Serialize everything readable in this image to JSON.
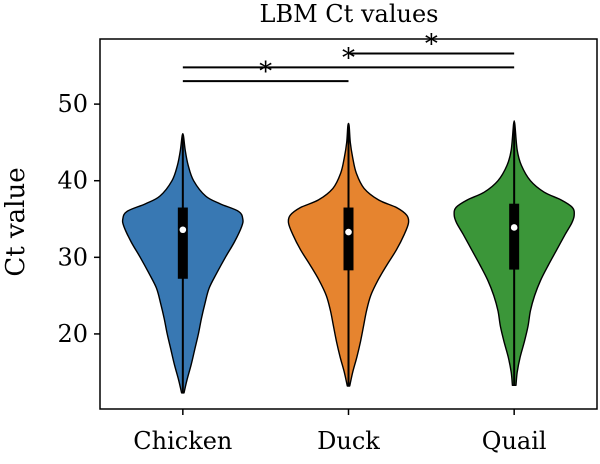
{
  "chart_data": {
    "type": "violin",
    "title": "LBM Ct values",
    "xlabel": "",
    "ylabel": "Ct value",
    "ylim": [
      10.2,
      58.5
    ],
    "yticks": [
      20,
      30,
      40,
      50
    ],
    "categories": [
      "Chicken",
      "Duck",
      "Quail"
    ],
    "series": [
      {
        "name": "Chicken",
        "color": "#3878b3",
        "min": 12.3,
        "q1": 27.2,
        "median": 33.6,
        "q3": 36.5,
        "max": 45.9,
        "density": [
          [
            12.3,
            0.02
          ],
          [
            14,
            0.07
          ],
          [
            16,
            0.14
          ],
          [
            18,
            0.2
          ],
          [
            20,
            0.26
          ],
          [
            22,
            0.31
          ],
          [
            24,
            0.37
          ],
          [
            26,
            0.44
          ],
          [
            28,
            0.57
          ],
          [
            30,
            0.71
          ],
          [
            32,
            0.86
          ],
          [
            34,
            0.98
          ],
          [
            35,
            1.0
          ],
          [
            36,
            0.93
          ],
          [
            37,
            0.62
          ],
          [
            38,
            0.38
          ],
          [
            40,
            0.18
          ],
          [
            42,
            0.09
          ],
          [
            44,
            0.04
          ],
          [
            45.9,
            0.01
          ]
        ]
      },
      {
        "name": "Duck",
        "color": "#e6842f",
        "min": 13.2,
        "q1": 28.3,
        "median": 33.3,
        "q3": 36.5,
        "max": 47.2,
        "density": [
          [
            13.2,
            0.02
          ],
          [
            15,
            0.07
          ],
          [
            17,
            0.14
          ],
          [
            19,
            0.2
          ],
          [
            21,
            0.25
          ],
          [
            23,
            0.3
          ],
          [
            25,
            0.37
          ],
          [
            27,
            0.49
          ],
          [
            29,
            0.64
          ],
          [
            31,
            0.8
          ],
          [
            33,
            0.93
          ],
          [
            34.5,
            1.0
          ],
          [
            35.5,
            0.97
          ],
          [
            36.5,
            0.8
          ],
          [
            37.5,
            0.5
          ],
          [
            39,
            0.26
          ],
          [
            41,
            0.13
          ],
          [
            43,
            0.07
          ],
          [
            45,
            0.03
          ],
          [
            47.2,
            0.01
          ]
        ]
      },
      {
        "name": "Quail",
        "color": "#3b9639",
        "min": 13.3,
        "q1": 28.4,
        "median": 33.9,
        "q3": 37.0,
        "max": 47.4,
        "density": [
          [
            13.3,
            0.03
          ],
          [
            15,
            0.05
          ],
          [
            17,
            0.1
          ],
          [
            19,
            0.17
          ],
          [
            21,
            0.23
          ],
          [
            23,
            0.27
          ],
          [
            25,
            0.34
          ],
          [
            27,
            0.44
          ],
          [
            29,
            0.57
          ],
          [
            31,
            0.71
          ],
          [
            33,
            0.85
          ],
          [
            34.5,
            0.96
          ],
          [
            35.5,
            1.0
          ],
          [
            36.5,
            0.97
          ],
          [
            37.5,
            0.78
          ],
          [
            38.5,
            0.5
          ],
          [
            40,
            0.27
          ],
          [
            42,
            0.12
          ],
          [
            44,
            0.05
          ],
          [
            47.4,
            0.01
          ]
        ]
      }
    ],
    "significance": [
      {
        "from": "Chicken",
        "to": "Duck",
        "y": 53.0,
        "label": "*"
      },
      {
        "from": "Chicken",
        "to": "Quail",
        "y": 54.8,
        "label": "*"
      },
      {
        "from": "Duck",
        "to": "Quail",
        "y": 56.6,
        "label": "*"
      }
    ]
  }
}
